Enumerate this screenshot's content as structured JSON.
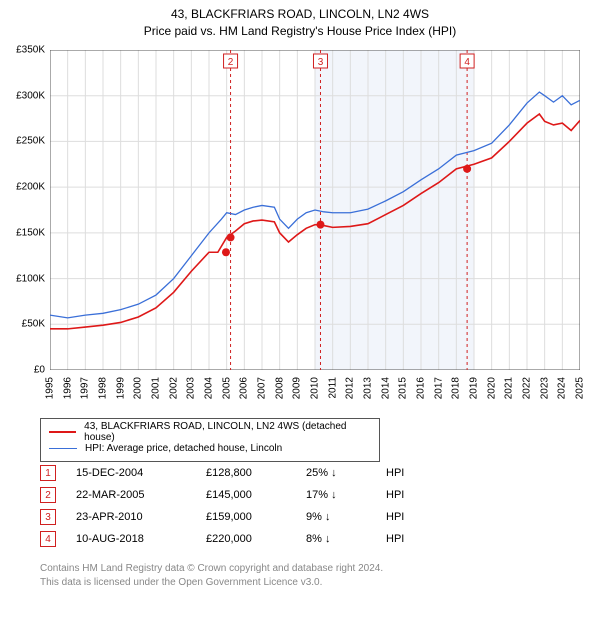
{
  "title": {
    "line1": "43, BLACKFRIARS ROAD, LINCOLN, LN2 4WS",
    "line2": "Price paid vs. HM Land Registry's House Price Index (HPI)"
  },
  "chart": {
    "type": "line",
    "background_color": "#ffffff",
    "grid_color": "#dddddd",
    "axis_color": "#555555",
    "shade_band": {
      "from_year": 2010,
      "to_year": 2019,
      "color": "#f2f5fb"
    },
    "x": {
      "min": 1995,
      "max": 2025,
      "tick_step": 1,
      "label_fontsize": 10
    },
    "y": {
      "min": 0,
      "max": 350000,
      "tick_step": 50000,
      "label_prefix": "£",
      "label_suffix": "K",
      "label_fontsize": 10
    },
    "series": [
      {
        "name": "43, BLACKFRIARS ROAD, LINCOLN, LN2 4WS (detached house)",
        "color": "#de1818",
        "line_width": 1.6,
        "points": [
          [
            1995,
            45000
          ],
          [
            1996,
            45000
          ],
          [
            1997,
            47000
          ],
          [
            1998,
            49000
          ],
          [
            1999,
            52000
          ],
          [
            2000,
            58000
          ],
          [
            2001,
            68000
          ],
          [
            2002,
            85000
          ],
          [
            2003,
            108000
          ],
          [
            2004,
            128800
          ],
          [
            2004.5,
            128800
          ],
          [
            2005,
            145000
          ],
          [
            2005.5,
            152000
          ],
          [
            2006,
            160000
          ],
          [
            2006.5,
            163000
          ],
          [
            2007,
            164000
          ],
          [
            2007.7,
            162000
          ],
          [
            2008,
            150000
          ],
          [
            2008.5,
            140000
          ],
          [
            2009,
            148000
          ],
          [
            2009.5,
            155000
          ],
          [
            2010,
            159000
          ],
          [
            2010.5,
            158000
          ],
          [
            2011,
            156000
          ],
          [
            2012,
            157000
          ],
          [
            2013,
            160000
          ],
          [
            2014,
            170000
          ],
          [
            2015,
            180000
          ],
          [
            2016,
            193000
          ],
          [
            2017,
            205000
          ],
          [
            2018,
            220000
          ],
          [
            2019,
            225000
          ],
          [
            2020,
            232000
          ],
          [
            2021,
            250000
          ],
          [
            2022,
            270000
          ],
          [
            2022.7,
            280000
          ],
          [
            2023,
            272000
          ],
          [
            2023.5,
            268000
          ],
          [
            2024,
            270000
          ],
          [
            2024.5,
            262000
          ],
          [
            2025,
            273000
          ]
        ]
      },
      {
        "name": "HPI: Average price, detached house, Lincoln",
        "color": "#3a6fd8",
        "line_width": 1.3,
        "points": [
          [
            1995,
            60000
          ],
          [
            1996,
            57000
          ],
          [
            1997,
            60000
          ],
          [
            1998,
            62000
          ],
          [
            1999,
            66000
          ],
          [
            2000,
            72000
          ],
          [
            2001,
            82000
          ],
          [
            2002,
            100000
          ],
          [
            2003,
            125000
          ],
          [
            2004,
            150000
          ],
          [
            2004.7,
            165000
          ],
          [
            2005,
            172000
          ],
          [
            2005.5,
            170000
          ],
          [
            2006,
            175000
          ],
          [
            2006.5,
            178000
          ],
          [
            2007,
            180000
          ],
          [
            2007.7,
            178000
          ],
          [
            2008,
            165000
          ],
          [
            2008.5,
            155000
          ],
          [
            2009,
            165000
          ],
          [
            2009.5,
            172000
          ],
          [
            2010,
            175000
          ],
          [
            2010.5,
            173000
          ],
          [
            2011,
            172000
          ],
          [
            2012,
            172000
          ],
          [
            2013,
            176000
          ],
          [
            2014,
            185000
          ],
          [
            2015,
            195000
          ],
          [
            2016,
            208000
          ],
          [
            2017,
            220000
          ],
          [
            2018,
            235000
          ],
          [
            2019,
            240000
          ],
          [
            2020,
            248000
          ],
          [
            2021,
            268000
          ],
          [
            2022,
            292000
          ],
          [
            2022.7,
            304000
          ],
          [
            2023,
            300000
          ],
          [
            2023.5,
            293000
          ],
          [
            2024,
            300000
          ],
          [
            2024.5,
            290000
          ],
          [
            2025,
            295000
          ]
        ]
      }
    ],
    "sale_markers": [
      {
        "n": "1",
        "year": 2004.96,
        "price": 128800,
        "label_pos": "dot"
      },
      {
        "n": "2",
        "year": 2005.22,
        "price": 145000,
        "label_pos": "top"
      },
      {
        "n": "3",
        "year": 2010.31,
        "price": 159000,
        "label_pos": "top"
      },
      {
        "n": "4",
        "year": 2018.61,
        "price": 220000,
        "label_pos": "top"
      }
    ],
    "marker_style": {
      "dot_color": "#de1818",
      "dot_radius": 4,
      "box_border": "#d02020",
      "line_color": "#d02020",
      "box_size": 14,
      "box_fontsize": 10
    }
  },
  "legend": {
    "rows": [
      {
        "color": "#de1818",
        "width": 2,
        "text": "43, BLACKFRIARS ROAD, LINCOLN, LN2 4WS (detached house)"
      },
      {
        "color": "#3a6fd8",
        "width": 1.3,
        "text": "HPI: Average price, detached house, Lincoln"
      }
    ]
  },
  "sales": [
    {
      "n": "1",
      "date": "15-DEC-2004",
      "price": "£128,800",
      "diff": "25% ↓",
      "vs": "HPI"
    },
    {
      "n": "2",
      "date": "22-MAR-2005",
      "price": "£145,000",
      "diff": "17% ↓",
      "vs": "HPI"
    },
    {
      "n": "3",
      "date": "23-APR-2010",
      "price": "£159,000",
      "diff": "9% ↓",
      "vs": "HPI"
    },
    {
      "n": "4",
      "date": "10-AUG-2018",
      "price": "£220,000",
      "diff": "8% ↓",
      "vs": "HPI"
    }
  ],
  "footer": {
    "line1": "Contains HM Land Registry data © Crown copyright and database right 2024.",
    "line2": "This data is licensed under the Open Government Licence v3.0."
  }
}
